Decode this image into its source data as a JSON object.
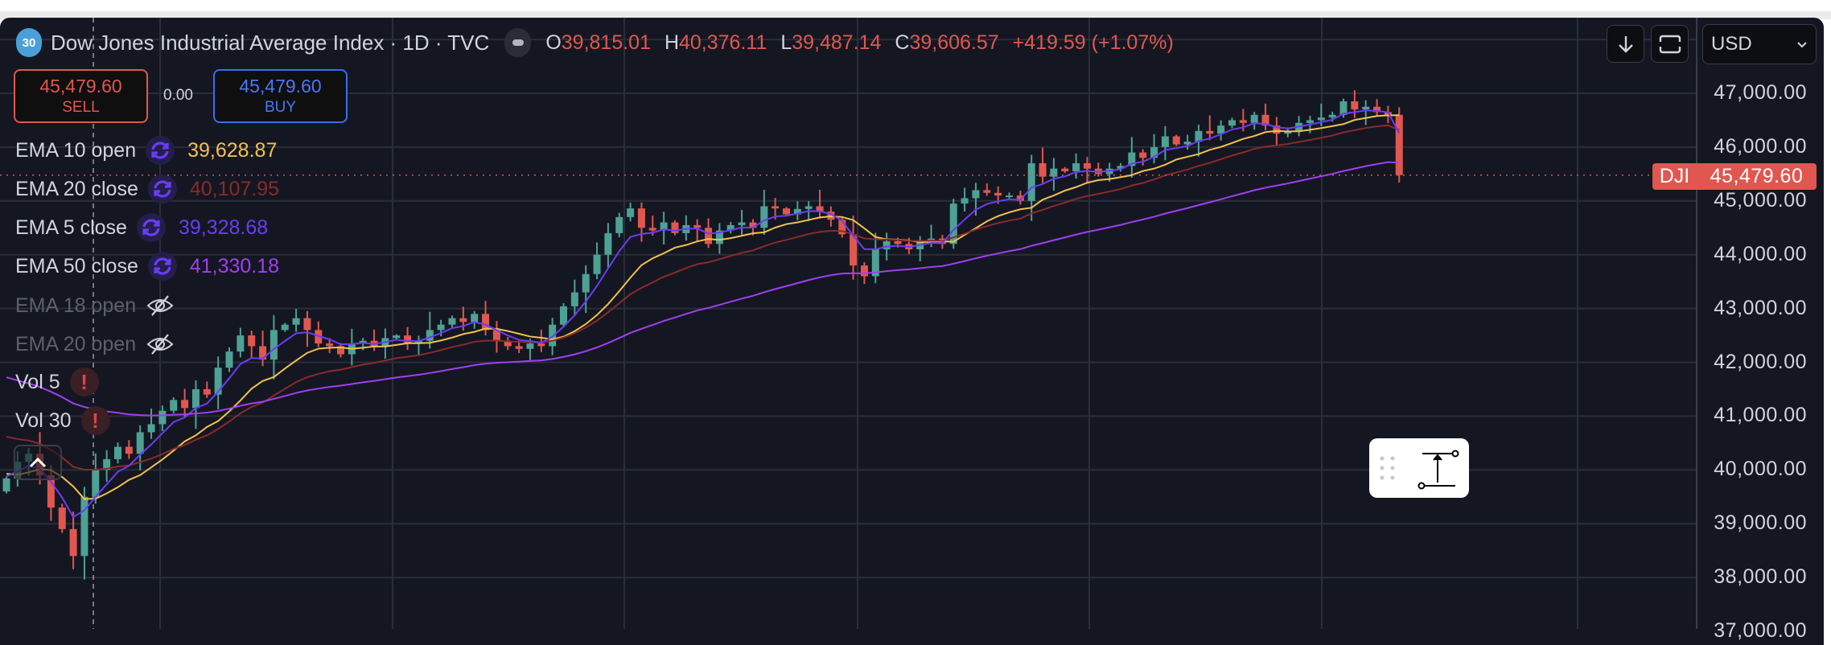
{
  "header": {
    "symbol_badge": "30",
    "title": "Dow Jones Industrial Average Index · 1D · TVC",
    "ohlc": {
      "o_label": "O",
      "o": "39,815.01",
      "h_label": "H",
      "h": "40,376.11",
      "l_label": "L",
      "l": "39,487.14",
      "c_label": "C",
      "c": "39,606.57",
      "change": "+419.59 (+1.07%)"
    }
  },
  "trade": {
    "sell_price": "45,479.60",
    "sell_label": "SELL",
    "spread": "0.00",
    "buy_price": "45,479.60",
    "buy_label": "BUY"
  },
  "legend": [
    {
      "label": "EMA 10 open",
      "value": "39,628.87",
      "color": "#f2c14e",
      "icon": "sync-icon"
    },
    {
      "label": "EMA 20 close",
      "value": "40,107.95",
      "color": "#8b2a2a",
      "icon": "sync-icon"
    },
    {
      "label": "EMA 5 close",
      "value": "39,328.68",
      "color": "#6a3cf5",
      "icon": "sync-icon"
    },
    {
      "label": "EMA 50 close",
      "value": "41,330.18",
      "color": "#a23ef0",
      "icon": "sync-icon"
    },
    {
      "label": "EMA 18 open",
      "icon": "eye-off-icon",
      "hidden": true
    },
    {
      "label": "EMA 20 open",
      "icon": "eye-off-icon",
      "hidden": true
    },
    {
      "label": "Vol 5",
      "icon": "alert-icon"
    },
    {
      "label": "Vol 30",
      "icon": "alert-icon"
    }
  ],
  "toolbar": {
    "currency": "USD"
  },
  "price_tag": {
    "symbol": "DJI",
    "value": "45,479.60",
    "price": 45479.6
  },
  "colors": {
    "up": "#4da195",
    "down": "#e0574f",
    "ema10": "#f2c14e",
    "ema20": "#8b2a2a",
    "ema5": "#6a3cf5",
    "ema50": "#a23ef0",
    "background": "#141722",
    "grid": "#2a2e39"
  },
  "chart_data": {
    "type": "candlestick",
    "title": "Dow Jones Industrial Average Index · 1D · TVC",
    "ylim": [
      37000,
      48000
    ],
    "y_ticks": [
      "47,000.00",
      "46,000.00",
      "45,000.00",
      "44,000.00",
      "43,000.00",
      "42,000.00",
      "41,000.00",
      "40,000.00",
      "39,000.00",
      "38,000.00",
      "37,000.00"
    ],
    "y_tick_values": [
      47000,
      46000,
      45000,
      44000,
      43000,
      42000,
      41000,
      40000,
      39000,
      38000,
      37000
    ],
    "first_open": 39600,
    "closes": [
      39840,
      40150,
      40300,
      39900,
      39300,
      38900,
      38400,
      39500,
      40000,
      40200,
      40430,
      40300,
      40700,
      40850,
      41100,
      41300,
      41150,
      41500,
      41400,
      41900,
      42200,
      42500,
      42300,
      42050,
      42600,
      42700,
      42820,
      42600,
      42350,
      42300,
      42150,
      42350,
      42400,
      42300,
      42450,
      42500,
      42350,
      42400,
      42600,
      42700,
      42820,
      42750,
      42900,
      42600,
      42400,
      42300,
      42250,
      42350,
      42300,
      42700,
      43040,
      43300,
      43640,
      44000,
      44400,
      44700,
      44860,
      44500,
      44450,
      44600,
      44400,
      44550,
      44500,
      44200,
      44450,
      44550,
      44600,
      44500,
      44900,
      44860,
      44750,
      44850,
      44900,
      44800,
      44650,
      44380,
      43800,
      43600,
      44100,
      44250,
      44200,
      44100,
      44250,
      44300,
      44200,
      44950,
      45050,
      45200,
      45150,
      45100,
      45100,
      45000,
      45700,
      45450,
      45600,
      45550,
      45700,
      45600,
      45500,
      45600,
      45650,
      45900,
      45800,
      46000,
      46200,
      46050,
      46100,
      46300,
      46250,
      46400,
      46500,
      46450,
      46600,
      46400,
      46250,
      46300,
      46450,
      46500,
      46550,
      46600,
      46850,
      46700,
      46750,
      46650,
      46600,
      45480
    ],
    "ema_series": [
      {
        "name": "EMA 10 open",
        "period": 10,
        "source": "open",
        "color": "#f2c14e",
        "seed": 40000
      },
      {
        "name": "EMA 20 close",
        "period": 20,
        "source": "close",
        "color": "#8b2a2a",
        "seed": 40700
      },
      {
        "name": "EMA 5 close",
        "period": 5,
        "source": "close",
        "color": "#6a3cf5",
        "seed": 39900
      },
      {
        "name": "EMA 50 close",
        "period": 50,
        "source": "close",
        "color": "#a23ef0",
        "seed": 41800
      }
    ]
  }
}
